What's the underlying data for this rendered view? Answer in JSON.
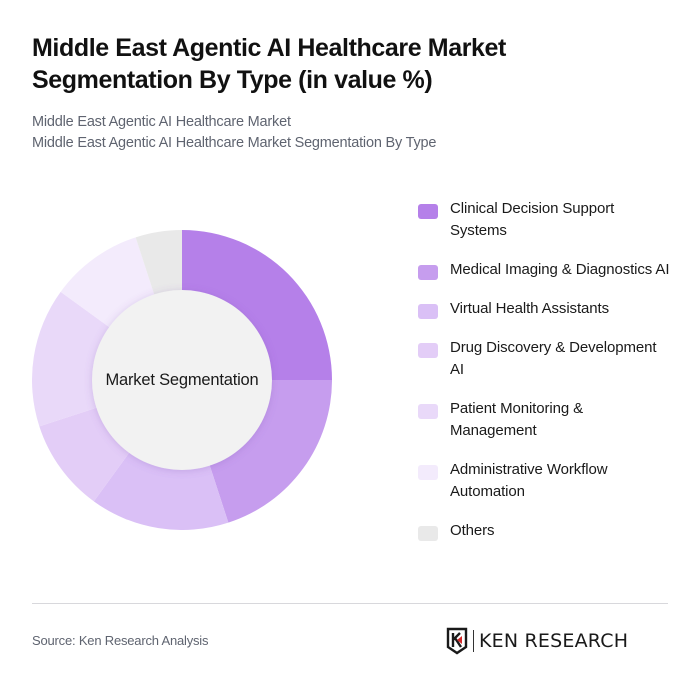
{
  "header": {
    "title": "Middle East Agentic AI Healthcare Market Segmentation By Type (in value %)",
    "subtitle_line1": "Middle East Agentic AI Healthcare Market",
    "subtitle_line2": "Middle East Agentic AI Healthcare Market Segmentation By Type"
  },
  "donut": {
    "center_label": "Market Segmentation"
  },
  "legend": {
    "items": [
      {
        "label": "Clinical Decision Support Systems",
        "color": "#b580e9"
      },
      {
        "label": "Medical Imaging & Diagnostics AI",
        "color": "#c69dee"
      },
      {
        "label": "Virtual Health Assistants",
        "color": "#dac0f6"
      },
      {
        "label": "Drug Discovery & Development AI",
        "color": "#e3cdf7"
      },
      {
        "label": "Patient Monitoring & Management",
        "color": "#e9d9f9"
      },
      {
        "label": "Administrative Workflow Automation",
        "color": "#f3ebfc"
      },
      {
        "label": "Others",
        "color": "#e9e9e9"
      }
    ]
  },
  "footer": {
    "source": "Source: Ken Research Analysis",
    "logo_text": "KEN RESEARCH"
  },
  "chart_data": {
    "type": "pie",
    "variant": "donut",
    "title": "Middle East Agentic AI Healthcare Market Segmentation By Type (in value %)",
    "subtitle": [
      "Middle East Agentic AI Healthcare Market",
      "Middle East Agentic AI Healthcare Market Segmentation By Type"
    ],
    "center_label": "Market Segmentation",
    "categories": [
      "Clinical Decision Support Systems",
      "Medical Imaging & Diagnostics AI",
      "Virtual Health Assistants",
      "Drug Discovery & Development AI",
      "Patient Monitoring & Management",
      "Administrative Workflow Automation",
      "Others"
    ],
    "values": [
      25,
      20,
      15,
      10,
      15,
      10,
      5
    ],
    "unit": "%",
    "colors": [
      "#b580e9",
      "#c69dee",
      "#dac0f6",
      "#e3cdf7",
      "#e9d9f9",
      "#f3ebfc",
      "#e9e9e9"
    ],
    "start_angle": "12 o'clock, clockwise",
    "legend_position": "right",
    "data_labels": false,
    "source": "Source: Ken Research Analysis"
  }
}
